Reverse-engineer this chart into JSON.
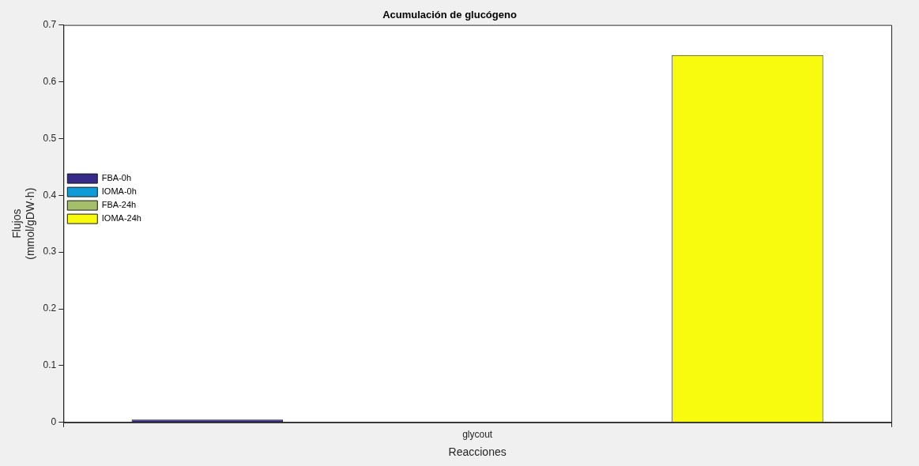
{
  "chart_data": {
    "type": "bar",
    "title": "Acumulación de glucógeno",
    "xlabel": "Reacciones",
    "ylabel": "Flujos\n(mmol/gDW·h)",
    "categories": [
      "glycout"
    ],
    "series": [
      {
        "name": "FBA-0h",
        "color": "#352a87",
        "values": [
          0.005
        ]
      },
      {
        "name": "IOMA-0h",
        "color": "#0f9bd7",
        "values": [
          0
        ]
      },
      {
        "name": "FBA-24h",
        "color": "#a5be6a",
        "values": [
          0
        ]
      },
      {
        "name": "IOMA-24h",
        "color": "#f9fb0e",
        "values": [
          0.647
        ]
      }
    ],
    "ylim": [
      0,
      0.7
    ],
    "yticks": [
      0,
      0.1,
      0.2,
      0.3,
      0.4,
      0.5,
      0.6,
      0.7
    ],
    "grid": false,
    "legend": "top"
  }
}
